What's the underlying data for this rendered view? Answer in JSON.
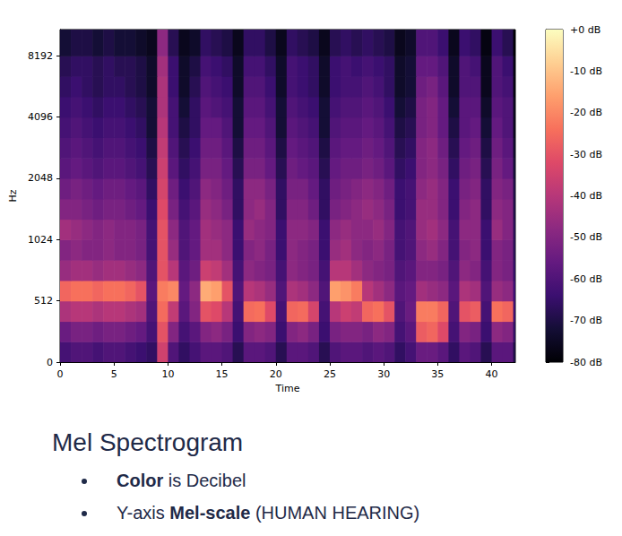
{
  "chart_data": {
    "type": "heatmap",
    "xlabel": "Time",
    "ylabel": "Hz",
    "xlim": [
      0,
      42.2
    ],
    "xticks": [
      0,
      5,
      10,
      15,
      20,
      25,
      30,
      35,
      40
    ],
    "ylim": [
      0,
      11025
    ],
    "yticks": [
      0,
      512,
      1024,
      2048,
      4096,
      8192
    ],
    "log": "y",
    "grid": false,
    "time_edges": [
      0,
      1,
      2,
      3,
      4,
      5,
      6,
      7,
      8,
      9,
      10,
      11,
      12,
      13,
      14,
      15,
      16,
      17,
      18,
      19,
      20,
      21,
      22,
      23,
      24,
      25,
      26,
      27,
      28,
      29,
      30,
      31,
      32,
      33,
      34,
      35,
      36,
      37,
      38,
      39,
      40,
      41,
      42,
      42.2
    ],
    "freq_edges": [
      0,
      171,
      341,
      512,
      645,
      813,
      1024,
      1290,
      1625,
      2048,
      2580,
      3251,
      4096,
      5161,
      6502,
      8192,
      11025
    ],
    "cells": [
      [
        -62,
        -60,
        -60,
        -62,
        -60,
        -60,
        -62,
        -64,
        -66,
        -35,
        -60,
        -66,
        -62,
        -58,
        -58,
        -60,
        -68,
        -58,
        -58,
        -60,
        -68,
        -58,
        -58,
        -60,
        -68,
        -60,
        -58,
        -58,
        -60,
        -58,
        -60,
        -66,
        -62,
        -55,
        -55,
        -58,
        -66,
        -58,
        -60,
        -68,
        -58,
        -58,
        -70
      ],
      [
        -55,
        -52,
        -52,
        -54,
        -52,
        -52,
        -54,
        -56,
        -62,
        -30,
        -50,
        -62,
        -58,
        -50,
        -48,
        -52,
        -64,
        -50,
        -48,
        -50,
        -64,
        -50,
        -48,
        -52,
        -64,
        -52,
        -50,
        -50,
        -52,
        -48,
        -50,
        -62,
        -58,
        -28,
        -26,
        -32,
        -62,
        -50,
        -52,
        -64,
        -48,
        -50,
        -66
      ],
      [
        -42,
        -40,
        -40,
        -42,
        -40,
        -40,
        -42,
        -44,
        -60,
        -25,
        -38,
        -58,
        -50,
        -30,
        -32,
        -40,
        -62,
        -25,
        -24,
        -32,
        -62,
        -26,
        -25,
        -34,
        -62,
        -40,
        -36,
        -38,
        -26,
        -24,
        -30,
        -60,
        -55,
        -22,
        -22,
        -26,
        -60,
        -30,
        -28,
        -62,
        -24,
        -26,
        -64
      ],
      [
        -26,
        -24,
        -24,
        -26,
        -24,
        -24,
        -26,
        -30,
        -58,
        -22,
        -20,
        -56,
        -48,
        -14,
        -16,
        -30,
        -60,
        -40,
        -42,
        -46,
        -60,
        -42,
        -44,
        -48,
        -60,
        -16,
        -18,
        -22,
        -40,
        -44,
        -48,
        -58,
        -56,
        -44,
        -46,
        -48,
        -58,
        -42,
        -44,
        -60,
        -46,
        -48,
        -64
      ],
      [
        -46,
        -44,
        -44,
        -46,
        -44,
        -44,
        -46,
        -48,
        -60,
        -30,
        -40,
        -58,
        -54,
        -36,
        -38,
        -44,
        -62,
        -48,
        -50,
        -52,
        -62,
        -48,
        -50,
        -52,
        -62,
        -40,
        -40,
        -44,
        -48,
        -50,
        -52,
        -60,
        -58,
        -50,
        -50,
        -52,
        -60,
        -48,
        -50,
        -62,
        -50,
        -52,
        -66
      ],
      [
        -50,
        -48,
        -50,
        -50,
        -48,
        -50,
        -50,
        -52,
        -62,
        -30,
        -46,
        -60,
        -56,
        -44,
        -44,
        -48,
        -64,
        -50,
        -48,
        -52,
        -64,
        -48,
        -50,
        -52,
        -64,
        -46,
        -44,
        -48,
        -50,
        -48,
        -52,
        -62,
        -60,
        -48,
        -46,
        -50,
        -62,
        -50,
        -48,
        -64,
        -50,
        -52,
        -68
      ],
      [
        -44,
        -46,
        -48,
        -50,
        -48,
        -50,
        -50,
        -52,
        -62,
        -30,
        -48,
        -60,
        -56,
        -44,
        -46,
        -48,
        -64,
        -46,
        -48,
        -50,
        -64,
        -48,
        -48,
        -50,
        -64,
        -48,
        -46,
        -48,
        -48,
        -46,
        -50,
        -62,
        -60,
        -46,
        -44,
        -48,
        -62,
        -48,
        -48,
        -64,
        -46,
        -50,
        -68
      ],
      [
        -50,
        -50,
        -52,
        -54,
        -52,
        -52,
        -54,
        -56,
        -64,
        -32,
        -52,
        -62,
        -58,
        -46,
        -48,
        -52,
        -66,
        -48,
        -46,
        -50,
        -66,
        -50,
        -50,
        -54,
        -66,
        -52,
        -50,
        -48,
        -46,
        -48,
        -52,
        -64,
        -62,
        -46,
        -46,
        -50,
        -64,
        -50,
        -48,
        -66,
        -48,
        -50,
        -70
      ],
      [
        -54,
        -52,
        -54,
        -56,
        -54,
        -54,
        -56,
        -58,
        -66,
        -34,
        -54,
        -64,
        -60,
        -48,
        -50,
        -54,
        -66,
        -48,
        -48,
        -52,
        -66,
        -52,
        -52,
        -56,
        -66,
        -54,
        -52,
        -50,
        -48,
        -50,
        -54,
        -64,
        -62,
        -48,
        -46,
        -50,
        -64,
        -52,
        -50,
        -66,
        -50,
        -52,
        -70
      ],
      [
        -58,
        -56,
        -58,
        -60,
        -58,
        -58,
        -60,
        -62,
        -68,
        -36,
        -58,
        -66,
        -62,
        -52,
        -52,
        -56,
        -68,
        -52,
        -52,
        -56,
        -68,
        -54,
        -56,
        -58,
        -68,
        -56,
        -54,
        -54,
        -52,
        -54,
        -58,
        -66,
        -64,
        -50,
        -48,
        -52,
        -66,
        -54,
        -52,
        -68,
        -52,
        -56,
        -72
      ],
      [
        -60,
        -58,
        -60,
        -62,
        -60,
        -60,
        -62,
        -64,
        -70,
        -38,
        -60,
        -68,
        -64,
        -54,
        -54,
        -58,
        -70,
        -54,
        -54,
        -58,
        -70,
        -56,
        -58,
        -60,
        -70,
        -58,
        -56,
        -56,
        -54,
        -56,
        -60,
        -68,
        -66,
        -50,
        -48,
        -54,
        -68,
        -56,
        -54,
        -70,
        -54,
        -58,
        -74
      ],
      [
        -62,
        -60,
        -62,
        -64,
        -62,
        -62,
        -64,
        -66,
        -72,
        -40,
        -62,
        -70,
        -66,
        -56,
        -56,
        -60,
        -72,
        -56,
        -56,
        -60,
        -72,
        -58,
        -60,
        -62,
        -72,
        -60,
        -58,
        -58,
        -56,
        -58,
        -62,
        -70,
        -68,
        -52,
        -50,
        -56,
        -70,
        -58,
        -56,
        -72,
        -56,
        -60,
        -76
      ],
      [
        -64,
        -62,
        -64,
        -66,
        -64,
        -64,
        -66,
        -68,
        -72,
        -42,
        -62,
        -72,
        -66,
        -58,
        -60,
        -62,
        -72,
        -58,
        -58,
        -62,
        -72,
        -60,
        -62,
        -64,
        -72,
        -62,
        -60,
        -60,
        -58,
        -60,
        -64,
        -72,
        -70,
        -52,
        -50,
        -56,
        -72,
        -58,
        -58,
        -74,
        -58,
        -60,
        -76
      ],
      [
        -66,
        -64,
        -66,
        -68,
        -66,
        -66,
        -68,
        -70,
        -74,
        -42,
        -64,
        -74,
        -68,
        -60,
        -62,
        -64,
        -74,
        -60,
        -60,
        -64,
        -74,
        -62,
        -64,
        -66,
        -74,
        -64,
        -62,
        -62,
        -60,
        -62,
        -66,
        -74,
        -72,
        -54,
        -52,
        -58,
        -74,
        -60,
        -60,
        -76,
        -60,
        -62,
        -78
      ],
      [
        -68,
        -66,
        -66,
        -68,
        -66,
        -68,
        -68,
        -70,
        -74,
        -44,
        -64,
        -74,
        -70,
        -62,
        -64,
        -66,
        -74,
        -62,
        -62,
        -66,
        -74,
        -62,
        -64,
        -66,
        -74,
        -64,
        -62,
        -64,
        -62,
        -64,
        -66,
        -74,
        -72,
        -56,
        -56,
        -60,
        -74,
        -60,
        -62,
        -76,
        -60,
        -64,
        -78
      ],
      [
        -72,
        -70,
        -70,
        -72,
        -70,
        -72,
        -72,
        -74,
        -76,
        -48,
        -68,
        -76,
        -74,
        -66,
        -68,
        -70,
        -76,
        -66,
        -66,
        -70,
        -76,
        -66,
        -68,
        -70,
        -76,
        -68,
        -66,
        -68,
        -66,
        -68,
        -70,
        -76,
        -74,
        -60,
        -60,
        -64,
        -76,
        -64,
        -66,
        -78,
        -64,
        -68,
        -80
      ]
    ],
    "colorbar": {
      "range": [
        -80,
        0
      ],
      "ticks": [
        {
          "value": 0,
          "label": "+0 dB"
        },
        {
          "value": -10,
          "label": "-10 dB"
        },
        {
          "value": -20,
          "label": "-20 dB"
        },
        {
          "value": -30,
          "label": "-30 dB"
        },
        {
          "value": -40,
          "label": "-40 dB"
        },
        {
          "value": -50,
          "label": "-50 dB"
        },
        {
          "value": -60,
          "label": "-60 dB"
        },
        {
          "value": -70,
          "label": "-70 dB"
        },
        {
          "value": -80,
          "label": "-80 dB"
        }
      ]
    }
  },
  "caption": {
    "title": "Mel Spectrogram",
    "bullets": [
      [
        {
          "text": "Color",
          "bold": true
        },
        {
          "text": " is Decibel"
        }
      ],
      [
        {
          "text": "Y-axis "
        },
        {
          "text": "Mel-scale",
          "bold": true
        },
        {
          "text": " (HUMAN HEARING)"
        }
      ]
    ]
  }
}
